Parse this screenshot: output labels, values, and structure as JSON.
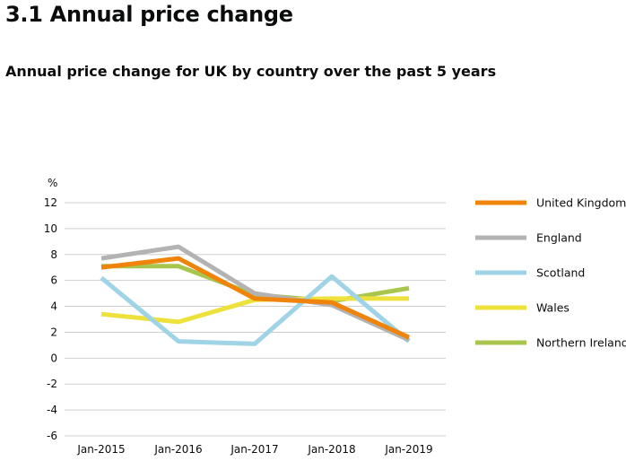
{
  "page": {
    "title": "3.1 Annual price change",
    "chart_heading": "Annual price change for UK by country over the past 5 years"
  },
  "chart_data": {
    "type": "line",
    "title": "Annual price change for UK by country over the past 5 years",
    "xlabel": "",
    "ylabel": "%",
    "ylim": [
      -6,
      12
    ],
    "yticks": [
      12,
      10,
      8,
      6,
      4,
      2,
      0,
      -2,
      -4,
      -6
    ],
    "grid": true,
    "legend": "right",
    "categories": [
      "Jan-2015",
      "Jan-2016",
      "Jan-2017",
      "Jan-2018",
      "Jan-2019"
    ],
    "series": [
      {
        "name": "Northern Ireland",
        "color": "#a8c64e",
        "values": [
          7.1,
          7.1,
          4.9,
          4.4,
          5.4
        ]
      },
      {
        "name": "Wales",
        "color": "#ede13b",
        "values": [
          3.4,
          2.8,
          4.5,
          4.6,
          4.6
        ]
      },
      {
        "name": "Scotland",
        "color": "#9fd3e6",
        "values": [
          6.2,
          1.3,
          1.1,
          6.3,
          1.3
        ]
      },
      {
        "name": "England",
        "color": "#b3b3b3",
        "values": [
          7.7,
          8.6,
          5.0,
          4.1,
          1.4
        ]
      },
      {
        "name": "United Kingdom",
        "color": "#f0830a",
        "values": [
          7.0,
          7.7,
          4.6,
          4.3,
          1.6
        ]
      }
    ],
    "legend_order": [
      "United Kingdom",
      "England",
      "Scotland",
      "Wales",
      "Northern Ireland"
    ]
  }
}
